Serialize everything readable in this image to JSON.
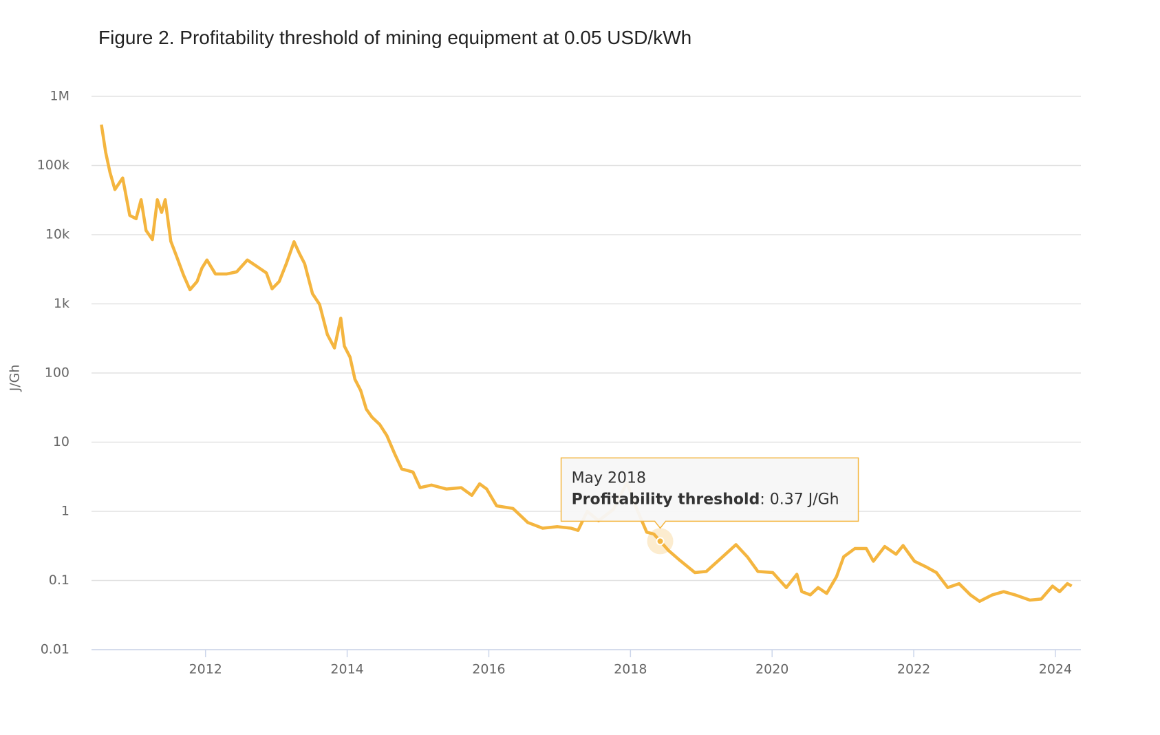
{
  "chart_data": {
    "type": "line",
    "title": "Figure 2. Profitability threshold of mining equipment at 0.05 USD/kWh",
    "y_label": "J/Gh",
    "log_y": true,
    "grid": true,
    "xlim": [
      2010.39,
      2024.36
    ],
    "xticks": [
      2012,
      2014,
      2016,
      2018,
      2020,
      2022,
      2024
    ],
    "ylim": [
      0.01,
      1000000
    ],
    "yticks": [
      {
        "value": 1000000,
        "label": "1M"
      },
      {
        "value": 100000,
        "label": "100k"
      },
      {
        "value": 10000,
        "label": "10k"
      },
      {
        "value": 1000,
        "label": "1k"
      },
      100,
      10,
      1,
      0.1,
      0.01
    ],
    "x": [
      2010.53,
      2010.59,
      2010.65,
      2010.72,
      2010.83,
      2010.93,
      2011.02,
      2011.09,
      2011.16,
      2011.25,
      2011.32,
      2011.38,
      2011.43,
      2011.51,
      2011.59,
      2011.69,
      2011.78,
      2011.88,
      2011.95,
      2012.02,
      2012.14,
      2012.3,
      2012.44,
      2012.59,
      2012.72,
      2012.86,
      2012.94,
      2013.04,
      2013.14,
      2013.25,
      2013.32,
      2013.4,
      2013.51,
      2013.61,
      2013.72,
      2013.82,
      2013.91,
      2013.96,
      2014.04,
      2014.11,
      2014.19,
      2014.27,
      2014.35,
      2014.46,
      2014.56,
      2014.67,
      2014.77,
      2014.93,
      2015.03,
      2015.19,
      2015.4,
      2015.61,
      2015.76,
      2015.87,
      2015.97,
      2016.11,
      2016.34,
      2016.55,
      2016.76,
      2016.97,
      2017.16,
      2017.26,
      2017.39,
      2017.55,
      2017.76,
      2017.95,
      2018.07,
      2018.23,
      2018.33,
      2018.42,
      2018.54,
      2018.7,
      2018.91,
      2019.07,
      2019.28,
      2019.49,
      2019.65,
      2019.8,
      2020.01,
      2020.2,
      2020.35,
      2020.42,
      2020.54,
      2020.65,
      2020.77,
      2020.91,
      2021.01,
      2021.17,
      2021.33,
      2021.43,
      2021.59,
      2021.75,
      2021.85,
      2022.01,
      2022.17,
      2022.32,
      2022.48,
      2022.64,
      2022.8,
      2022.93,
      2023.11,
      2023.27,
      2023.43,
      2023.64,
      2023.8,
      2023.96,
      2024.06,
      2024.17,
      2024.23
    ],
    "series": [
      {
        "name": "Profitability threshold",
        "color": "#f4b53f",
        "values": [
          390000,
          155000,
          80000,
          45000,
          66000,
          19000,
          17000,
          32000,
          11500,
          8500,
          32000,
          21000,
          32000,
          8000,
          4900,
          2600,
          1600,
          2100,
          3300,
          4300,
          2700,
          2700,
          2900,
          4300,
          3500,
          2800,
          1650,
          2100,
          3800,
          7900,
          5500,
          3800,
          1400,
          980,
          360,
          230,
          620,
          245,
          170,
          81,
          56,
          30,
          23,
          18,
          12.5,
          6.8,
          4.1,
          3.7,
          2.2,
          2.4,
          2.1,
          2.2,
          1.7,
          2.5,
          2.1,
          1.2,
          1.1,
          0.69,
          0.57,
          0.6,
          0.57,
          0.53,
          1.0,
          0.73,
          1.07,
          2.6,
          1.2,
          0.5,
          0.47,
          0.37,
          0.27,
          0.195,
          0.13,
          0.135,
          0.21,
          0.33,
          0.22,
          0.135,
          0.13,
          0.079,
          0.123,
          0.069,
          0.062,
          0.079,
          0.065,
          0.114,
          0.22,
          0.29,
          0.29,
          0.19,
          0.31,
          0.24,
          0.32,
          0.19,
          0.158,
          0.13,
          0.079,
          0.09,
          0.062,
          0.05,
          0.062,
          0.069,
          0.062,
          0.052,
          0.054,
          0.083,
          0.069,
          0.09,
          0.083
        ]
      }
    ],
    "tooltip": {
      "index": 69,
      "header": "May 2018",
      "name": "Profitability threshold",
      "text": ": 0.37 J/Gh"
    }
  }
}
